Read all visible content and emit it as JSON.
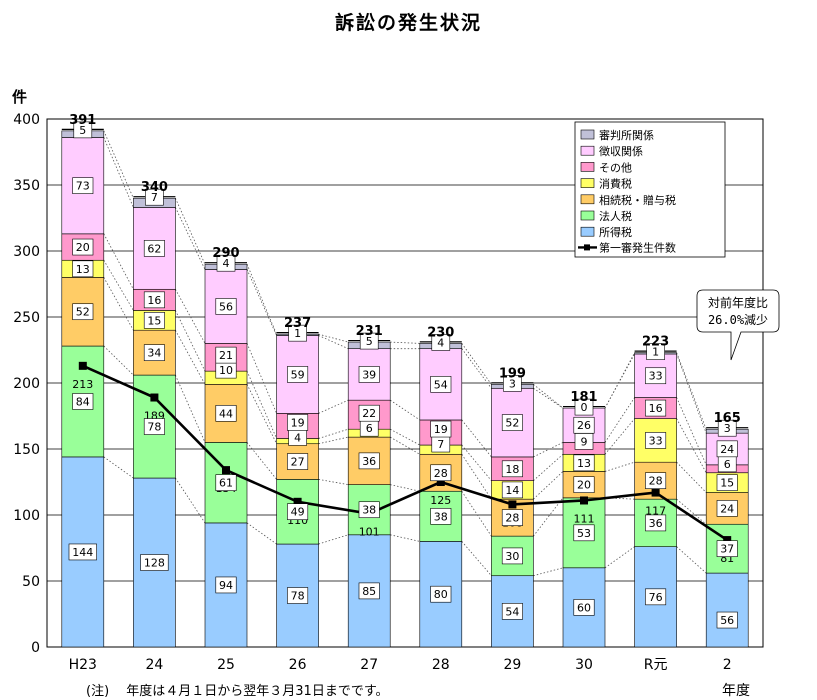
{
  "chart_data": {
    "type": "bar",
    "stacked": true,
    "title": "訴訟の発生状況",
    "ylabel": "件",
    "xlabel": "年度",
    "ylim": [
      0,
      400
    ],
    "yticks": [
      0,
      50,
      100,
      150,
      200,
      250,
      300,
      350,
      400
    ],
    "grid": true,
    "legend_position": "top-right",
    "categories": [
      "H23",
      "24",
      "25",
      "26",
      "27",
      "28",
      "29",
      "30",
      "R元",
      "2"
    ],
    "series": [
      {
        "name": "所得税",
        "color": "#99ccff",
        "values": [
          144,
          128,
          94,
          78,
          85,
          80,
          54,
          60,
          76,
          56
        ]
      },
      {
        "name": "法人税",
        "color": "#99ff99",
        "values": [
          84,
          78,
          61,
          49,
          38,
          38,
          30,
          53,
          36,
          37
        ]
      },
      {
        "name": "相続税・贈与税",
        "color": "#ffcc66",
        "values": [
          52,
          34,
          44,
          27,
          36,
          28,
          28,
          20,
          28,
          24
        ]
      },
      {
        "name": "消費税",
        "color": "#ffff66",
        "values": [
          13,
          15,
          10,
          4,
          6,
          7,
          14,
          13,
          33,
          15
        ]
      },
      {
        "name": "その他",
        "color": "#ff99cc",
        "values": [
          20,
          16,
          21,
          19,
          22,
          19,
          18,
          9,
          16,
          6
        ]
      },
      {
        "name": "徴収関係",
        "color": "#ffccff",
        "values": [
          73,
          62,
          56,
          59,
          39,
          54,
          52,
          26,
          33,
          24
        ]
      },
      {
        "name": "審判所関係",
        "color": "#c0c0d8",
        "values": [
          5,
          7,
          4,
          1,
          5,
          4,
          3,
          0,
          1,
          3
        ]
      }
    ],
    "totals": [
      391,
      340,
      290,
      237,
      231,
      230,
      199,
      181,
      223,
      165
    ],
    "line": {
      "name": "第一審発生件数",
      "color": "#000000",
      "values": [
        213,
        189,
        134,
        110,
        101,
        125,
        108,
        111,
        117,
        81
      ]
    },
    "callout": {
      "line1": "対前年度比",
      "line2": "26.0%減少"
    },
    "note": "(注)　 年度は４月１日から翌年３月31日までです。"
  }
}
